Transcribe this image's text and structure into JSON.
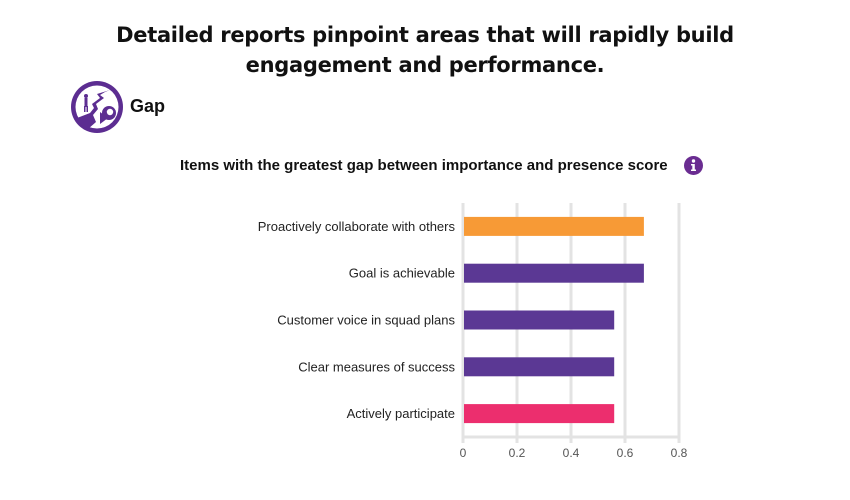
{
  "headline": "Detailed reports pinpoint areas that will rapidly build engagement and performance.",
  "badge": {
    "label": "Gap",
    "icon": "gap-cliff-icon",
    "color": "#5c2d91"
  },
  "info_icon": {
    "name": "info-icon",
    "glyph": "i",
    "color": "#6a2c91"
  },
  "chart_data": {
    "type": "bar",
    "orientation": "horizontal",
    "title": "Items with the greatest gap between importance and presence score",
    "categories": [
      "Proactively collaborate with others",
      "Goal is achievable",
      "Customer voice in squad plans",
      "Clear measures of success",
      "Actively participate"
    ],
    "values": [
      0.67,
      0.67,
      0.56,
      0.56,
      0.56
    ],
    "colors": [
      "#f79a36",
      "#5b3894",
      "#5b3894",
      "#5b3894",
      "#ec2e6e"
    ],
    "xlim": [
      0,
      0.8
    ],
    "xticks": [
      "0",
      "0.2",
      "0.4",
      "0.6",
      "0.8"
    ],
    "xtick_values": [
      0,
      0.2,
      0.4,
      0.6,
      0.8
    ],
    "xlabel": "",
    "ylabel": "",
    "grid": true
  }
}
